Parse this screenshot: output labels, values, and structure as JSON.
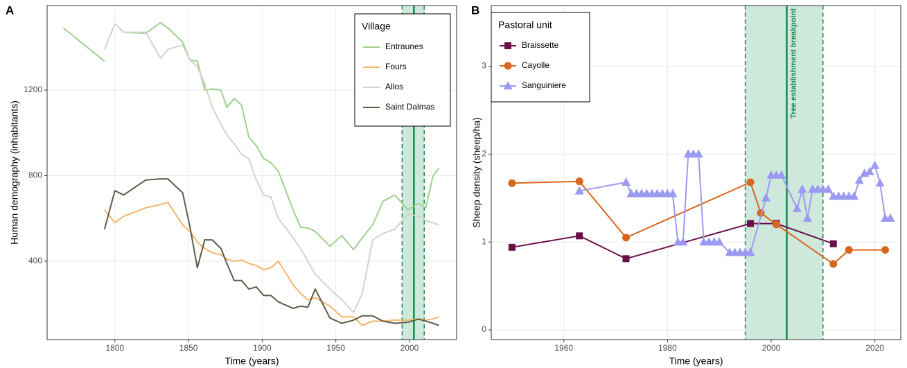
{
  "chart_data": [
    {
      "type": "line",
      "panel_label": "A",
      "x_label": "Time (years)",
      "y_label": "Human demography (inhabitants)",
      "xlim": [
        1754,
        2032
      ],
      "ylim": [
        34,
        1595
      ],
      "xticks": [
        1800,
        1850,
        1900,
        1950,
        2000
      ],
      "yticks": [
        400,
        800,
        1200
      ],
      "grid": true,
      "band": [
        1995,
        2010
      ],
      "vline": 2003,
      "band_color": "#cfe8dc",
      "vline_color": "#15884a",
      "legend_title": "Village",
      "legend": "upper right",
      "x": [
        1765,
        1793,
        1800,
        1806,
        1821,
        1831,
        1836,
        1846,
        1851,
        1856,
        1861,
        1866,
        1872,
        1876,
        1881,
        1886,
        1891,
        1896,
        1901,
        1906,
        1911,
        1921,
        1926,
        1931,
        1936,
        1946,
        1954,
        1962,
        1968,
        1975,
        1982,
        1990,
        1999,
        2006,
        2011,
        2016,
        2020
      ],
      "series": [
        {
          "name": "Entraunes",
          "color": "#9dd18e",
          "values": [
            1490,
            1335,
            null,
            1470,
            1465,
            1515,
            1490,
            1425,
            1340,
            1335,
            1200,
            1205,
            1200,
            1120,
            1160,
            1130,
            980,
            940,
            880,
            860,
            820,
            640,
            560,
            555,
            540,
            470,
            520,
            455,
            510,
            570,
            680,
            710,
            640,
            670,
            650,
            800,
            835
          ]
        },
        {
          "name": "Fours",
          "color": "#f5b56c",
          "values": [
            null,
            640,
            580,
            610,
            650,
            665,
            675,
            570,
            540,
            490,
            460,
            440,
            430,
            410,
            400,
            405,
            390,
            380,
            360,
            370,
            400,
            290,
            250,
            220,
            230,
            190,
            140,
            140,
            100,
            120,
            120,
            125,
            125,
            130,
            125,
            130,
            140
          ]
        },
        {
          "name": "Allos",
          "color": "#d3d3cc",
          "values": [
            null,
            1390,
            1510,
            1470,
            1470,
            1350,
            1390,
            1410,
            1340,
            1310,
            1230,
            1120,
            1040,
            990,
            950,
            900,
            880,
            780,
            710,
            700,
            600,
            510,
            460,
            400,
            340,
            270,
            220,
            160,
            250,
            500,
            530,
            550,
            620,
            610,
            590,
            580,
            570
          ]
        },
        {
          "name": "Saint Dalmas",
          "color": "#595d48",
          "values": [
            null,
            550,
            730,
            710,
            780,
            785,
            785,
            720,
            560,
            370,
            500,
            500,
            460,
            390,
            310,
            310,
            270,
            280,
            240,
            240,
            210,
            180,
            190,
            185,
            270,
            135,
            110,
            125,
            145,
            145,
            120,
            110,
            115,
            130,
            120,
            110,
            100
          ]
        }
      ]
    },
    {
      "type": "line",
      "panel_label": "B",
      "x_label": "Time (years)",
      "y_label": "Sheep density (sheep/ha)",
      "xlim": [
        1946,
        2025
      ],
      "ylim": [
        -0.11,
        3.69
      ],
      "xticks": [
        1960,
        1980,
        2000,
        2020
      ],
      "yticks": [
        0,
        1,
        2,
        3
      ],
      "grid": true,
      "band": [
        1995,
        2010
      ],
      "vline": 2003,
      "band_color": "#cfe8dc",
      "vline_color": "#15884a",
      "annotation": "Tree establishment breakpoint",
      "legend_title": "Pastoral unit",
      "legend": "upper left",
      "series": [
        {
          "name": "Braissette",
          "color": "#6b0f4b",
          "marker": "square",
          "x": [
            1950,
            1963,
            1972,
            1996,
            2001,
            2012
          ],
          "values": [
            0.94,
            1.07,
            0.81,
            1.21,
            1.21,
            0.98
          ]
        },
        {
          "name": "Cayolle",
          "color": "#d9661e",
          "marker": "circle",
          "x": [
            1950,
            1963,
            1972,
            1996,
            1998,
            2001,
            2012,
            2015,
            2022
          ],
          "values": [
            1.67,
            1.69,
            1.05,
            1.68,
            1.33,
            1.2,
            0.75,
            0.91,
            0.91
          ]
        },
        {
          "name": "Sanguiniere",
          "color": "#9a9af2",
          "marker": "triangle",
          "x": [
            1963,
            1972,
            1973,
            1974,
            1975,
            1976,
            1977,
            1978,
            1979,
            1980,
            1981,
            1982,
            1983,
            1984,
            1985,
            1986,
            1987,
            1988,
            1989,
            1990,
            1992,
            1993,
            1994,
            1995,
            1996,
            1999,
            2000,
            2001,
            2002,
            2005,
            2006,
            2007,
            2008,
            2009,
            2010,
            2011,
            2012,
            2013,
            2014,
            2015,
            2016,
            2017,
            2018,
            2019,
            2020,
            2021,
            2022,
            2023
          ],
          "values": [
            1.58,
            1.68,
            1.55,
            1.55,
            1.55,
            1.55,
            1.55,
            1.55,
            1.55,
            1.55,
            1.55,
            1.0,
            1.0,
            2.0,
            2.0,
            2.0,
            1.0,
            1.0,
            1.0,
            1.0,
            0.88,
            0.88,
            0.88,
            0.88,
            0.88,
            1.5,
            1.76,
            1.76,
            1.76,
            1.38,
            1.6,
            1.27,
            1.6,
            1.6,
            1.6,
            1.6,
            1.52,
            1.52,
            1.52,
            1.52,
            1.52,
            1.7,
            1.78,
            1.8,
            1.87,
            1.67,
            1.27,
            1.27
          ]
        }
      ]
    }
  ]
}
